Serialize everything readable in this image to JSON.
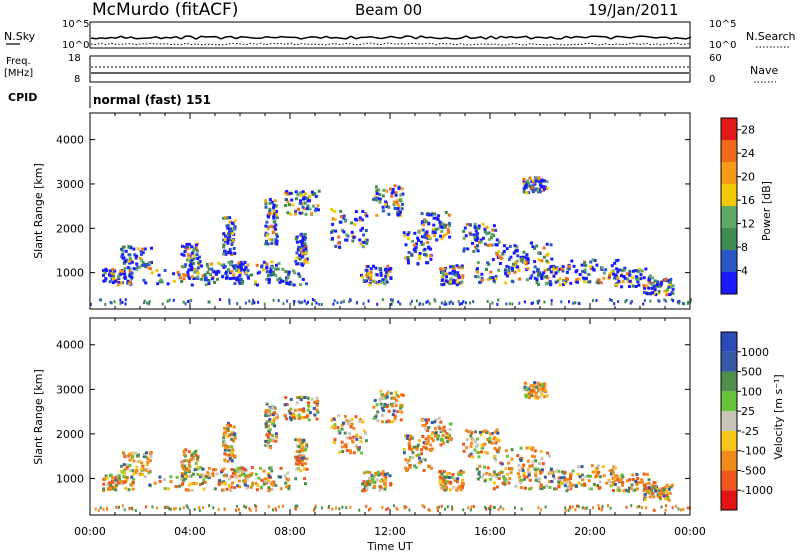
{
  "header": {
    "station": "McMurdo (fitACF)",
    "beam": "Beam 00",
    "date": "19/Jan/2011"
  },
  "strip_panels": {
    "nsky_label": "N.Sky",
    "nsearch_label": "N.Search",
    "nsky_ticks": [
      "10^5",
      "10^0"
    ],
    "nsearch_ticks": [
      "10^5",
      "10^0"
    ],
    "freq_label_top": "Freq.",
    "freq_label_bottom": "[MHz]",
    "freq_ticks": [
      "18",
      "8"
    ],
    "nave_label": "Nave",
    "nave_ticks": [
      "60",
      "0"
    ],
    "cpid_label": "CPID",
    "cpid_value": "normal (fast) 151"
  },
  "colors": {
    "power_scale": [
      "#1a1aff",
      "#2a56c6",
      "#3f8a52",
      "#5fa866",
      "#f2c800",
      "#f29c1a",
      "#f06a1a",
      "#e01a1a"
    ],
    "velocity_scale": [
      "#e31414",
      "#f0571a",
      "#f08a1a",
      "#f5c51a",
      "#c9c5b6",
      "#67c43a",
      "#4f8f4c",
      "#3559a6",
      "#2a4bb8"
    ]
  },
  "chart_data": [
    {
      "type": "heatmap",
      "title": "",
      "xlabel": "",
      "ylabel": "Slant Range [km]",
      "x_ticks": [
        "00:00",
        "04:00",
        "08:00",
        "12:00",
        "16:00",
        "20:00",
        "00:00"
      ],
      "xlim": [
        0,
        24
      ],
      "ylim": [
        180,
        4600
      ],
      "y_ticks": [
        1000,
        2000,
        3000,
        4000
      ],
      "colorbar": {
        "label": "Power [dB]",
        "ticks": [
          4,
          8,
          12,
          16,
          20,
          24,
          28
        ],
        "range": [
          0,
          30
        ]
      }
    },
    {
      "type": "heatmap",
      "title": "",
      "xlabel": "Time UT",
      "ylabel": "Slant Range [km]",
      "x_ticks": [
        "00:00",
        "04:00",
        "08:00",
        "12:00",
        "16:00",
        "20:00",
        "00:00"
      ],
      "xlim": [
        0,
        24
      ],
      "ylim": [
        180,
        4600
      ],
      "y_ticks": [
        1000,
        2000,
        3000,
        4000
      ],
      "colorbar": {
        "label": "Velocity [m s⁻¹]",
        "ticks": [
          -1000,
          -500,
          -100,
          -25,
          25,
          100,
          500,
          1000
        ],
        "range": [
          -1000,
          1000
        ]
      }
    }
  ]
}
